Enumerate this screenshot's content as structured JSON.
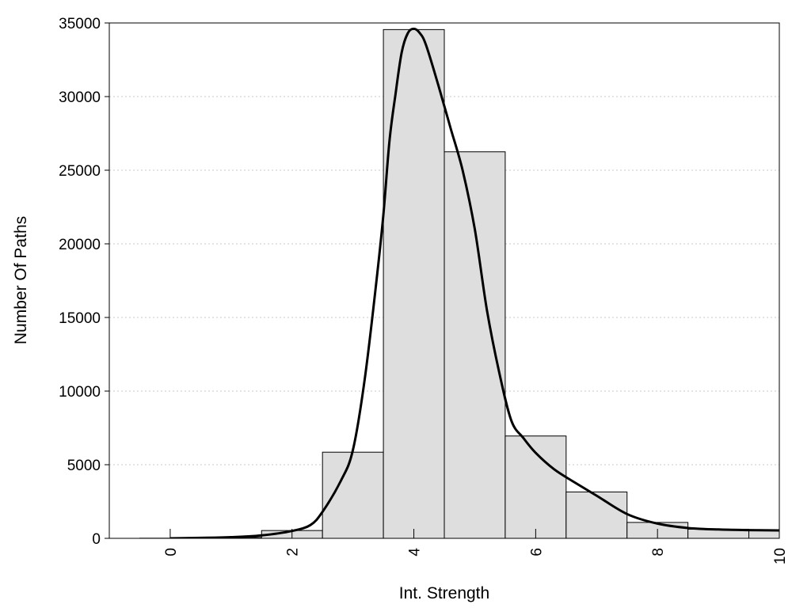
{
  "chart_data": {
    "type": "bar",
    "xlabel": "Int. Strength",
    "ylabel": "Number Of Paths",
    "xlim": [
      -1,
      10
    ],
    "ylim": [
      0,
      35000
    ],
    "x_ticks": [
      0,
      2,
      4,
      6,
      8,
      10
    ],
    "x_tick_labels": [
      "0",
      "2",
      "4",
      "6",
      "8",
      "10"
    ],
    "y_ticks": [
      0,
      5000,
      10000,
      15000,
      20000,
      25000,
      30000,
      35000
    ],
    "y_tick_labels": [
      "0",
      "5000",
      "10000",
      "15000",
      "20000",
      "25000",
      "30000",
      "35000"
    ],
    "grid": "horizontal-dotted",
    "bar_width": 1,
    "bars": [
      {
        "x": 0,
        "value": 10
      },
      {
        "x": 1,
        "value": 60
      },
      {
        "x": 2,
        "value": 530
      },
      {
        "x": 3,
        "value": 5850
      },
      {
        "x": 4,
        "value": 34550
      },
      {
        "x": 5,
        "value": 26250
      },
      {
        "x": 6,
        "value": 6950
      },
      {
        "x": 7,
        "value": 3150
      },
      {
        "x": 8,
        "value": 1080
      },
      {
        "x": 9,
        "value": 620
      },
      {
        "x": 10,
        "value": 560
      }
    ],
    "curve": {
      "x": [
        0,
        0.5,
        1,
        1.5,
        2,
        2.3,
        2.5,
        2.8,
        3,
        3.2,
        3.4,
        3.5,
        3.6,
        3.7,
        3.8,
        3.9,
        4,
        4.1,
        4.2,
        4.4,
        4.6,
        4.8,
        5,
        5.2,
        5.4,
        5.6,
        5.8,
        6,
        6.3,
        6.6,
        7,
        7.5,
        8,
        8.5,
        9,
        9.5,
        10
      ],
      "y": [
        0,
        30,
        80,
        200,
        500,
        900,
        1800,
        3900,
        6000,
        11000,
        18000,
        22000,
        27000,
        30200,
        33000,
        34300,
        34600,
        34300,
        33500,
        30800,
        27900,
        25000,
        21000,
        15500,
        11300,
        8000,
        6800,
        5800,
        4700,
        3900,
        2900,
        1650,
        1000,
        700,
        600,
        560,
        540
      ]
    }
  }
}
